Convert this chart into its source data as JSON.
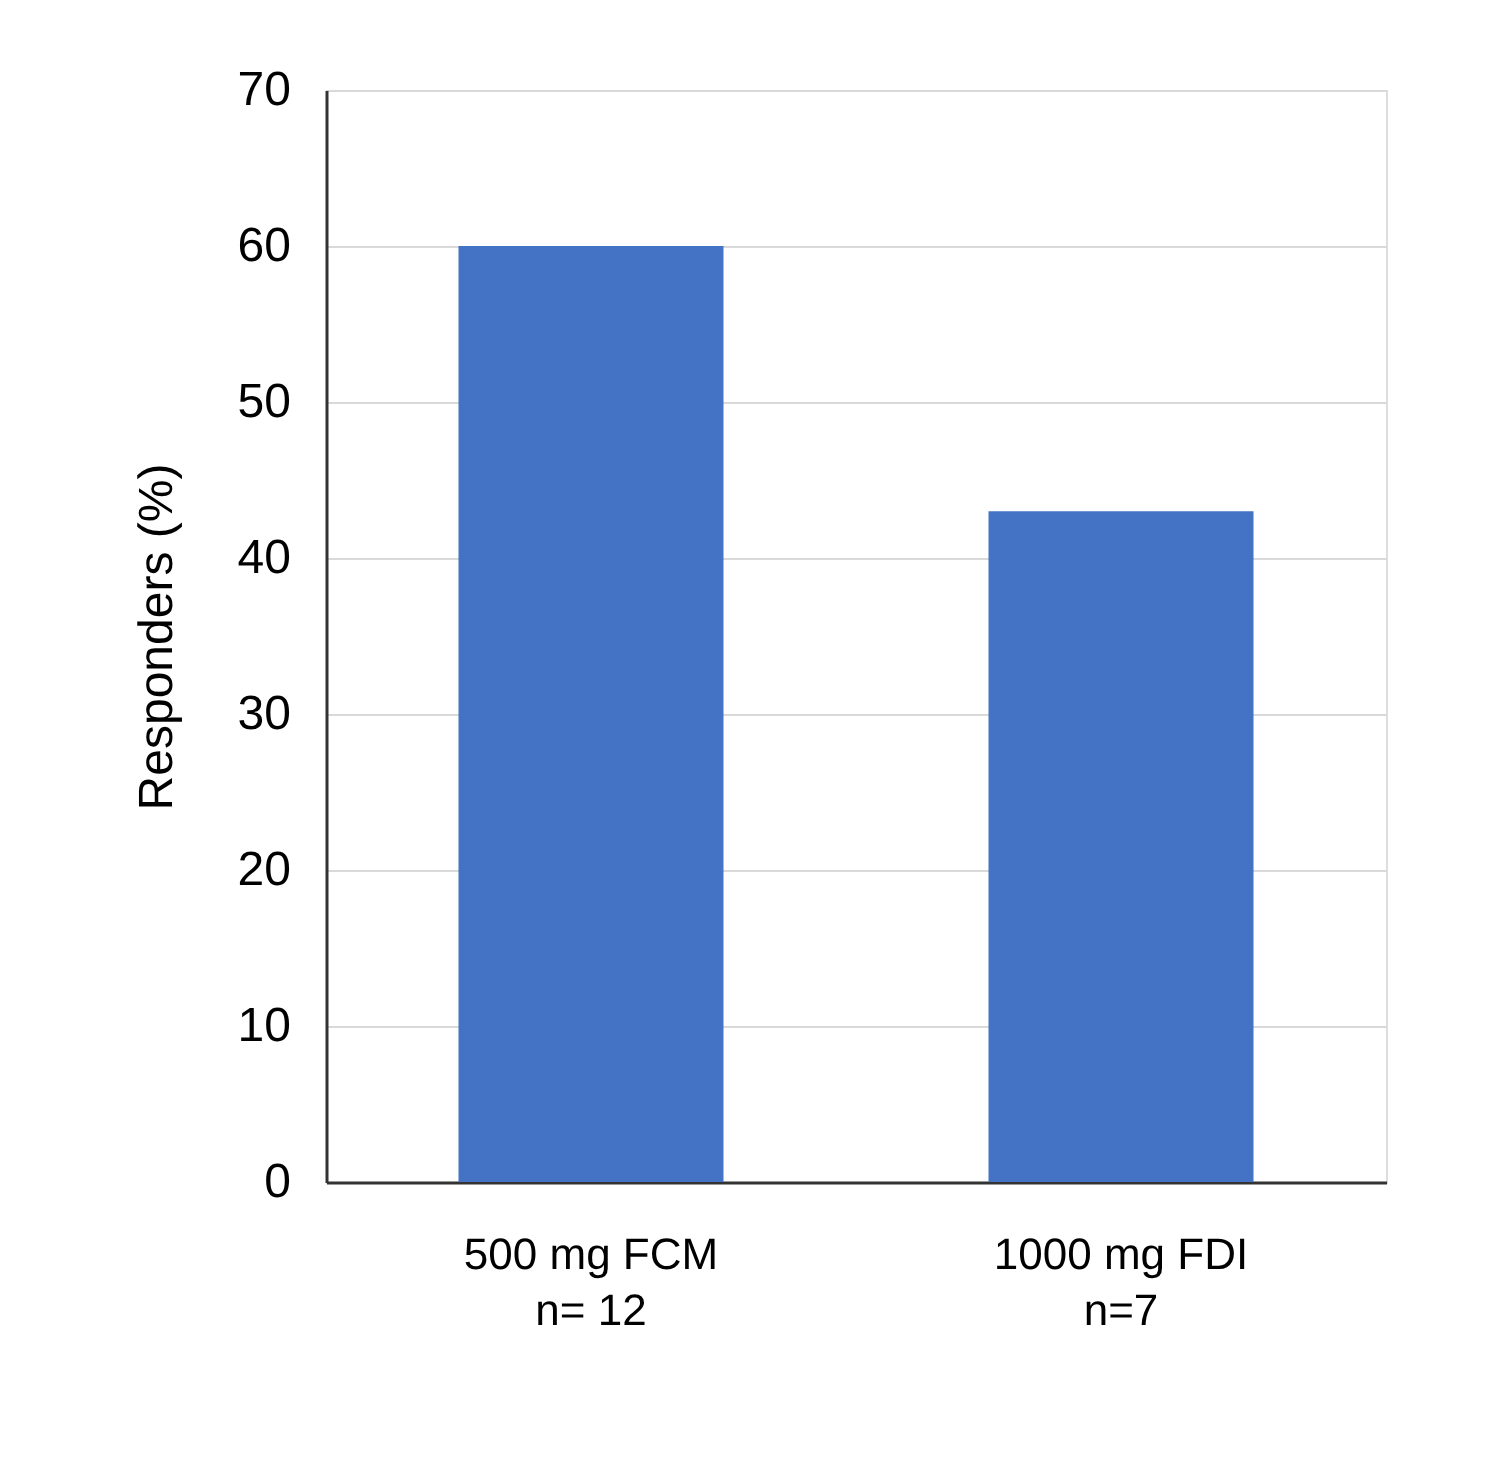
{
  "chart_data": {
    "type": "bar",
    "ylabel": "Responders (%)",
    "categories": [
      "500 mg FCM\nn= 12",
      "1000 mg FDI\nn=7"
    ],
    "values": [
      60,
      43
    ],
    "color": "#4472c4",
    "ylim": [
      0,
      70
    ],
    "yticks": [
      0,
      10,
      20,
      30,
      40,
      50,
      60,
      70
    ],
    "grid": "y"
  }
}
